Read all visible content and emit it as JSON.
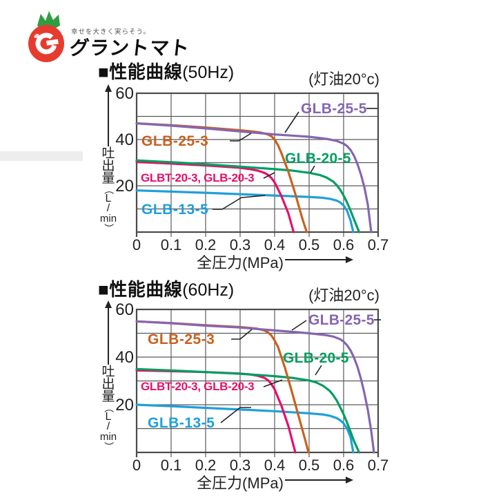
{
  "logo": {
    "tagline": "幸せを大きく実らそう。",
    "brand": "グラントマト"
  },
  "y_axis_unit_chars": [
    "吐",
    "出",
    "量",
    "（",
    "L",
    "/",
    "min",
    "）"
  ],
  "chart_data": [
    {
      "type": "line",
      "title": "■性能曲線",
      "freq_label": "(50Hz)",
      "condition": "(灯油20°c)",
      "xlabel": "全圧力(MPa)",
      "ylabel": "吐出量(L/min)",
      "xlim": [
        0,
        0.7
      ],
      "ylim": [
        0,
        60
      ],
      "grid": true,
      "legend_position": "inline-labels",
      "x_ticks": [
        "0",
        "0.1",
        "0.2",
        "0.3",
        "0.4",
        "0.5",
        "0.6",
        "0.7"
      ],
      "y_ticks": [
        {
          "value": 60,
          "label": "60"
        },
        {
          "value": 40,
          "label": "40"
        },
        {
          "value": 20,
          "label": "20"
        }
      ],
      "series": [
        {
          "name": "GLB-25-5",
          "color": "#8565b2",
          "points": [
            [
              0,
              47
            ],
            [
              0.1,
              46
            ],
            [
              0.2,
              44.8
            ],
            [
              0.3,
              43.5
            ],
            [
              0.4,
              42.2
            ],
            [
              0.45,
              41.7
            ],
            [
              0.5,
              41.2
            ],
            [
              0.55,
              40.3
            ],
            [
              0.58,
              39.4
            ],
            [
              0.6,
              38.2
            ],
            [
              0.61,
              37.2
            ],
            [
              0.62,
              35.5
            ],
            [
              0.63,
              33
            ],
            [
              0.64,
              29.5
            ],
            [
              0.65,
              25
            ],
            [
              0.66,
              19.5
            ],
            [
              0.67,
              12
            ],
            [
              0.68,
              0
            ]
          ]
        },
        {
          "name": "GLB-25-3",
          "color": "#c9601f",
          "points": [
            [
              0,
              47
            ],
            [
              0.1,
              46.2
            ],
            [
              0.2,
              45.2
            ],
            [
              0.3,
              44
            ],
            [
              0.34,
              43.4
            ],
            [
              0.36,
              43
            ],
            [
              0.38,
              42.2
            ],
            [
              0.39,
              41.5
            ],
            [
              0.4,
              40
            ],
            [
              0.41,
              37.5
            ],
            [
              0.42,
              34
            ],
            [
              0.44,
              26
            ],
            [
              0.46,
              16.5
            ],
            [
              0.48,
              6
            ],
            [
              0.493,
              0
            ]
          ]
        },
        {
          "name": "GLB-20-5",
          "color": "#009e60",
          "points": [
            [
              0,
              31
            ],
            [
              0.1,
              30.2
            ],
            [
              0.2,
              29.3
            ],
            [
              0.3,
              28.3
            ],
            [
              0.4,
              27.2
            ],
            [
              0.45,
              26.6
            ],
            [
              0.5,
              25.6
            ],
            [
              0.53,
              24.7
            ],
            [
              0.55,
              23.6
            ],
            [
              0.57,
              21.8
            ],
            [
              0.58,
              20.3
            ],
            [
              0.59,
              18.3
            ],
            [
              0.6,
              15.8
            ],
            [
              0.61,
              12.8
            ],
            [
              0.62,
              9.3
            ],
            [
              0.63,
              5.5
            ],
            [
              0.645,
              0
            ]
          ]
        },
        {
          "name": "GLBT-20-3, GLB-20-3",
          "color": "#e60f6a",
          "points": [
            [
              0,
              30.3
            ],
            [
              0.1,
              29.6
            ],
            [
              0.2,
              28.8
            ],
            [
              0.3,
              27.8
            ],
            [
              0.33,
              27.2
            ],
            [
              0.35,
              26.6
            ],
            [
              0.37,
              25.6
            ],
            [
              0.38,
              24.8
            ],
            [
              0.39,
              23.5
            ],
            [
              0.4,
              21.5
            ],
            [
              0.42,
              15.5
            ],
            [
              0.44,
              8
            ],
            [
              0.455,
              0
            ]
          ]
        },
        {
          "name": "GLB-13-5",
          "color": "#1f9fdc",
          "points": [
            [
              0,
              18
            ],
            [
              0.1,
              17.5
            ],
            [
              0.2,
              17
            ],
            [
              0.3,
              16.4
            ],
            [
              0.4,
              15.8
            ],
            [
              0.5,
              15.2
            ],
            [
              0.54,
              14.8
            ],
            [
              0.56,
              14.4
            ],
            [
              0.58,
              13.6
            ],
            [
              0.59,
              12.8
            ],
            [
              0.6,
              11.5
            ],
            [
              0.61,
              9.2
            ],
            [
              0.62,
              5
            ],
            [
              0.628,
              0
            ]
          ]
        }
      ]
    },
    {
      "type": "line",
      "title": "■性能曲線",
      "freq_label": "(60Hz)",
      "condition": "(灯油20°c)",
      "xlabel": "全圧力(MPa)",
      "ylabel": "吐出量(L/min)",
      "xlim": [
        0,
        0.7
      ],
      "ylim": [
        0,
        60
      ],
      "grid": true,
      "legend_position": "inline-labels",
      "x_ticks": [
        "0",
        "0.1",
        "0.2",
        "0.3",
        "0.4",
        "0.5",
        "0.6",
        "0.7"
      ],
      "y_ticks": [
        {
          "value": 60,
          "label": "60"
        },
        {
          "value": 40,
          "label": "40"
        },
        {
          "value": 20,
          "label": "20"
        }
      ],
      "series": [
        {
          "name": "GLB-25-5",
          "color": "#8565b2",
          "points": [
            [
              0,
              55
            ],
            [
              0.1,
              54.2
            ],
            [
              0.2,
              53.2
            ],
            [
              0.3,
              52.4
            ],
            [
              0.4,
              51.2
            ],
            [
              0.45,
              50.6
            ],
            [
              0.5,
              50
            ],
            [
              0.55,
              49.2
            ],
            [
              0.57,
              48.6
            ],
            [
              0.59,
              47.5
            ],
            [
              0.6,
              46.5
            ],
            [
              0.61,
              45
            ],
            [
              0.62,
              42.8
            ],
            [
              0.63,
              39.8
            ],
            [
              0.64,
              36
            ],
            [
              0.65,
              31
            ],
            [
              0.66,
              25
            ],
            [
              0.67,
              18
            ],
            [
              0.68,
              9
            ],
            [
              0.688,
              0
            ]
          ]
        },
        {
          "name": "GLB-25-3",
          "color": "#c9601f",
          "points": [
            [
              0,
              55
            ],
            [
              0.1,
              54.3
            ],
            [
              0.2,
              53.4
            ],
            [
              0.3,
              52.6
            ],
            [
              0.33,
              52.2
            ],
            [
              0.35,
              51.9
            ],
            [
              0.37,
              51.2
            ],
            [
              0.38,
              50.5
            ],
            [
              0.39,
              49.2
            ],
            [
              0.4,
              47
            ],
            [
              0.41,
              44.2
            ],
            [
              0.43,
              35.5
            ],
            [
              0.45,
              25.5
            ],
            [
              0.47,
              15
            ],
            [
              0.49,
              4.5
            ],
            [
              0.498,
              0
            ]
          ]
        },
        {
          "name": "GLB-20-5",
          "color": "#009e60",
          "points": [
            [
              0,
              35
            ],
            [
              0.1,
              34.4
            ],
            [
              0.2,
              33.7
            ],
            [
              0.3,
              33
            ],
            [
              0.4,
              32
            ],
            [
              0.45,
              31.3
            ],
            [
              0.5,
              30.2
            ],
            [
              0.52,
              29.4
            ],
            [
              0.54,
              28
            ],
            [
              0.56,
              25.8
            ],
            [
              0.57,
              24
            ],
            [
              0.58,
              21.8
            ],
            [
              0.59,
              19
            ],
            [
              0.6,
              16
            ],
            [
              0.61,
              12.5
            ],
            [
              0.62,
              8.7
            ],
            [
              0.63,
              4.8
            ],
            [
              0.645,
              0
            ]
          ]
        },
        {
          "name": "GLBT-20-3, GLB-20-3",
          "color": "#e60f6a",
          "points": [
            [
              0,
              34.4
            ],
            [
              0.1,
              34.1
            ],
            [
              0.2,
              33.7
            ],
            [
              0.3,
              33.1
            ],
            [
              0.33,
              32.7
            ],
            [
              0.35,
              32.2
            ],
            [
              0.37,
              31.3
            ],
            [
              0.38,
              30.4
            ],
            [
              0.39,
              28.8
            ],
            [
              0.4,
              26.5
            ],
            [
              0.42,
              19.5
            ],
            [
              0.44,
              11
            ],
            [
              0.46,
              0
            ]
          ]
        },
        {
          "name": "GLB-13-5",
          "color": "#1f9fdc",
          "points": [
            [
              0,
              20
            ],
            [
              0.1,
              19.4
            ],
            [
              0.2,
              18.7
            ],
            [
              0.3,
              18
            ],
            [
              0.4,
              17.3
            ],
            [
              0.5,
              16.4
            ],
            [
              0.54,
              15.9
            ],
            [
              0.56,
              15.4
            ],
            [
              0.58,
              14.4
            ],
            [
              0.59,
              13.5
            ],
            [
              0.6,
              12.2
            ],
            [
              0.61,
              10
            ],
            [
              0.62,
              6.5
            ],
            [
              0.628,
              0
            ]
          ]
        }
      ]
    }
  ]
}
